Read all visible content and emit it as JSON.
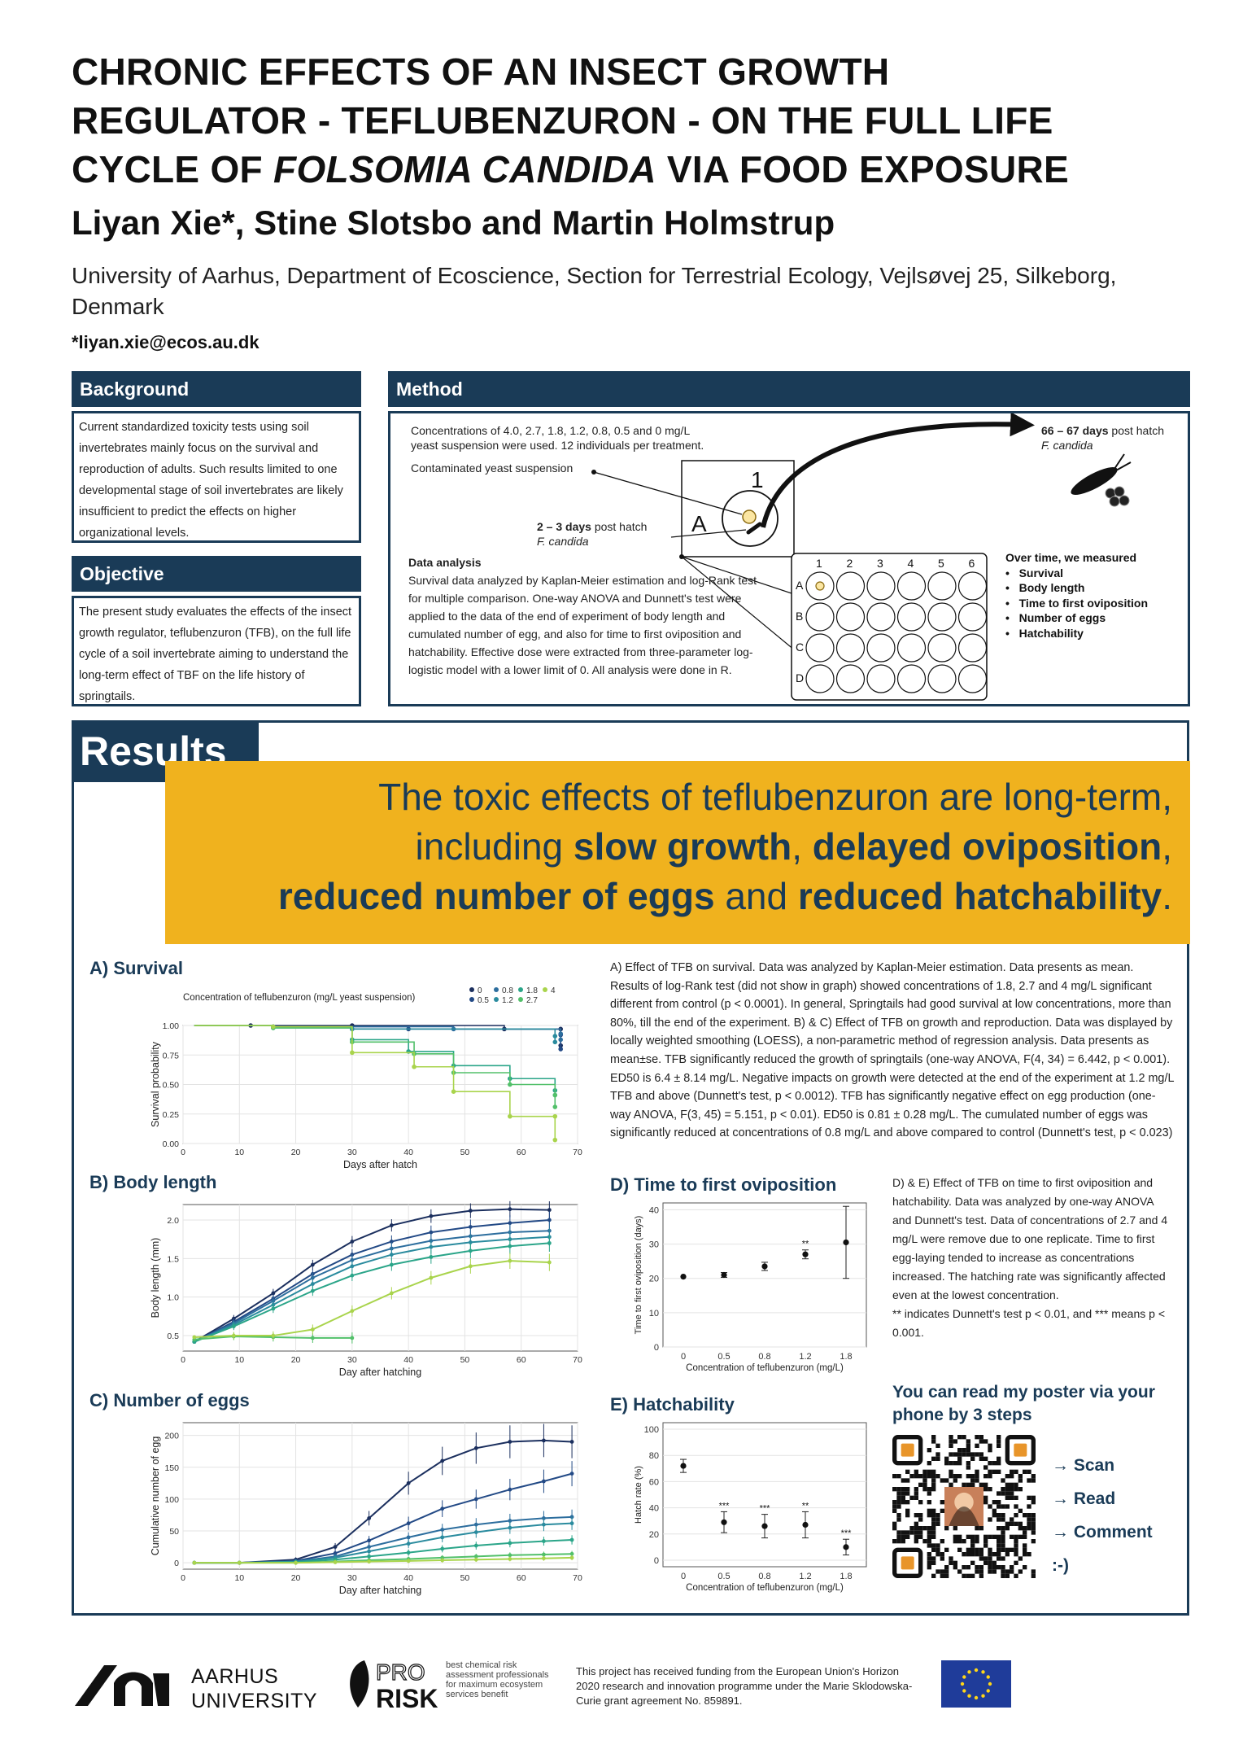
{
  "title": {
    "line1": "CHRONIC EFFECTS OF AN INSECT GROWTH",
    "line2": "REGULATOR - TEFLUBENZURON - ON THE FULL LIFE",
    "line3_pre": "CYCLE OF ",
    "line3_italic": "FOLSOMIA CANDIDA",
    "line3_post": " VIA FOOD EXPOSURE"
  },
  "authors": "Liyan Xie*, Stine Slotsbo and Martin Holmstrup",
  "affiliation": "University of Aarhus, Department of Ecoscience, Section for Terrestrial Ecology, Vejlsøvej 25, Silkeborg, Denmark",
  "email": "*liyan.xie@ecos.au.dk",
  "background": {
    "heading": "Background",
    "text": "Current standardized toxicity tests using soil invertebrates mainly focus on the survival and reproduction of adults. Such results limited to one developmental stage of soil invertebrates are likely insufficient to predict the effects on higher organizational levels."
  },
  "objective": {
    "heading": "Objective",
    "text": "The present study evaluates the effects of the insect growth regulator, teflubenzuron (TFB), on the full life cycle of a soil invertebrate aiming to understand the long-term effect of TBF on the life history of springtails."
  },
  "method": {
    "heading": "Method",
    "conc_text1": "Concentrations of 4.0, 2.7, 1.8, 1.2, 0.8, 0.5 and 0 mg/L",
    "conc_text2": "yeast suspension were used. 12 individuals per treatment.",
    "yeast": "Contaminated yeast suspension",
    "start_bold": "2 – 3 days",
    "start_rest": " post hatch",
    "species": "F. candida",
    "end_bold": "66 – 67 days",
    "end_rest": " post hatch",
    "well_label_1": "1",
    "well_label_a": "A",
    "plate_cols": [
      "1",
      "2",
      "3",
      "4",
      "5",
      "6"
    ],
    "plate_rows": [
      "A",
      "B",
      "C",
      "D"
    ],
    "da_heading": "Data analysis",
    "da_text": "Survival data analyzed by Kaplan-Meier estimation and log-Rank test for multiple comparison. One-way ANOVA and Dunnett's test were applied to the data of the end of experiment of body length and cumulated number of egg, and also for time to first oviposition and hatchability. Effective dose were extracted from three-parameter log-logistic model with a lower limit of 0. All analysis were done in R.",
    "measured_heading": "Over time, we measured",
    "measured": [
      "Survival",
      "Body length",
      "Time to first oviposition",
      "Number of eggs",
      "Hatchability"
    ]
  },
  "results": {
    "tag": "Results",
    "banner_1": "The toxic effects of teflubenzuron are long-term,",
    "banner_2a": "including ",
    "banner_2b": "slow growth",
    "banner_2c": ", ",
    "banner_2d": "delayed oviposition",
    "banner_2e": ",",
    "banner_3a": "reduced number of eggs",
    "banner_3b": " and ",
    "banner_3c": "reduced hatchability",
    "banner_3d": "."
  },
  "text_abc": "A) Effect of TFB on survival. Data was analyzed by Kaplan-Meier estimation. Data presents as mean. Results of log-Rank test (did not show in graph) showed concentrations of 1.8, 2.7 and 4 mg/L significant different from control (p < 0.0001). In general, Springtails had good survival at low concentrations, more than 80%, till the end of the experiment. B) & C) Effect of TFB on growth and reproduction. Data was displayed by locally weighted smoothing (LOESS), a non-parametric method of regression analysis. Data presents as mean±se. TFB significantly reduced the growth of springtails (one-way ANOVA, F(4, 34) = 6.442, p < 0.001). ED50 is 6.4 ± 8.14 mg/L. Negative impacts on growth were detected at the end of the experiment at 1.2 mg/L TFB and above (Dunnett's test, p < 0.0012). TFB has significantly negative effect on egg production (one-way ANOVA, F(3, 45) = 5.151, p < 0.01). ED50 is 0.81 ± 0.28 mg/L. The cumulated number of eggs was significantly reduced at concentrations of 0.8 mg/L and above compared to control (Dunnett's test, p < 0.023)",
  "text_de": "D) & E) Effect of TFB on time to first oviposition and hatchability. Data was analyzed by one-way ANOVA and Dunnett's test. Data of concentrations of 2.7 and 4 mg/L were remove due to one replicate. Time to first egg-laying tended to increase as concentrations increased. The hatching rate was significantly affected even at the lowest concentration.",
  "text_sig": "** indicates Dunnett's test p < 0.01, and *** means p < 0.001.",
  "qr": {
    "heading": "You can read my poster via your phone by 3 steps",
    "steps": [
      "→ Scan",
      "→ Read",
      "→ Comment",
      ":-)"
    ]
  },
  "footer": {
    "uni1": "AARHUS",
    "uni2": "UNIVERSITY",
    "prorisk_tag": "best chemical risk assessment professionals for maximum ecosystem services benefit",
    "funding": "This project has received funding from the European Union's Horizon 2020 research and innovation programme under the Marie Sklodowska-Curie grant agreement No. 859891."
  },
  "colors": {
    "c0": "#1b2f5e",
    "c05": "#234a86",
    "c08": "#2d6e9e",
    "c12": "#2a8b9e",
    "c18": "#2ba589",
    "c27": "#52c06a",
    "c4": "#a9d44c"
  },
  "chart_data": [
    {
      "id": "survival",
      "type": "line",
      "title": "A)  Survival",
      "legend_title": "Concentration of teflubenzuron (mg/L yeast suspension)",
      "xlabel": "Days after hatch",
      "ylabel": "Survival probability",
      "xlim": [
        0,
        70
      ],
      "ylim": [
        0,
        1
      ],
      "xticks": [
        0,
        10,
        20,
        30,
        40,
        50,
        60,
        70
      ],
      "yticks": [
        0.0,
        0.25,
        0.5,
        0.75,
        1.0
      ],
      "ytick_labels": [
        "0.00",
        "0.25",
        "0.50",
        "0.75",
        "1.00"
      ],
      "series": [
        {
          "name": "0",
          "color": "#1b2f5e",
          "x": [
            2,
            12,
            30,
            57,
            67,
            67
          ],
          "y": [
            1,
            1,
            1,
            0.97,
            0.97,
            0.83
          ]
        },
        {
          "name": "0.5",
          "color": "#234a86",
          "x": [
            2,
            16,
            40,
            67,
            67
          ],
          "y": [
            1,
            0.99,
            0.97,
            0.92,
            0.8
          ]
        },
        {
          "name": "0.8",
          "color": "#2d6e9e",
          "x": [
            2,
            16,
            48,
            67,
            67
          ],
          "y": [
            1,
            0.99,
            0.97,
            0.93,
            0.88
          ]
        },
        {
          "name": "1.2",
          "color": "#2a8b9e",
          "x": [
            2,
            16,
            30,
            66,
            66
          ],
          "y": [
            1,
            0.99,
            0.97,
            0.91,
            0.86
          ]
        },
        {
          "name": "1.8",
          "color": "#2ba589",
          "x": [
            2,
            16,
            30,
            40,
            48,
            58,
            66,
            66
          ],
          "y": [
            1,
            0.98,
            0.88,
            0.78,
            0.66,
            0.55,
            0.45,
            0.41
          ]
        },
        {
          "name": "2.7",
          "color": "#52c06a",
          "x": [
            2,
            16,
            30,
            41,
            48,
            58,
            66,
            66
          ],
          "y": [
            1,
            0.98,
            0.86,
            0.76,
            0.6,
            0.5,
            0.41,
            0.31
          ]
        },
        {
          "name": "4",
          "color": "#a9d44c",
          "x": [
            2,
            16,
            30,
            41,
            48,
            58,
            66,
            66
          ],
          "y": [
            1,
            0.99,
            0.77,
            0.65,
            0.44,
            0.23,
            0.23,
            0.03
          ]
        }
      ]
    },
    {
      "id": "body",
      "type": "line",
      "title": "B)  Body length",
      "xlabel": "Day after hatching",
      "ylabel": "Body length (mm)",
      "xlim": [
        0,
        70
      ],
      "ylim": [
        0.3,
        2.2
      ],
      "xticks": [
        0,
        10,
        20,
        30,
        40,
        50,
        60,
        70
      ],
      "yticks": [
        0.5,
        1.0,
        1.5,
        2.0
      ],
      "ytick_labels": [
        "0.5",
        "1.0",
        "1.5",
        "2.0"
      ],
      "series": [
        {
          "name": "0",
          "color": "#1b2f5e",
          "x": [
            2,
            9,
            16,
            23,
            30,
            37,
            44,
            51,
            58,
            65
          ],
          "y": [
            0.42,
            0.72,
            1.05,
            1.42,
            1.72,
            1.93,
            2.05,
            2.12,
            2.14,
            2.13
          ]
        },
        {
          "name": "0.5",
          "color": "#234a86",
          "x": [
            2,
            9,
            16,
            23,
            30,
            37,
            44,
            51,
            58,
            65
          ],
          "y": [
            0.42,
            0.68,
            0.98,
            1.3,
            1.55,
            1.72,
            1.84,
            1.91,
            1.96,
            2.0
          ]
        },
        {
          "name": "0.8",
          "color": "#2d6e9e",
          "x": [
            2,
            9,
            16,
            23,
            30,
            37,
            44,
            51,
            58,
            65
          ],
          "y": [
            0.42,
            0.66,
            0.95,
            1.25,
            1.48,
            1.63,
            1.73,
            1.79,
            1.84,
            1.86
          ]
        },
        {
          "name": "1.2",
          "color": "#2a8b9e",
          "x": [
            2,
            9,
            16,
            23,
            30,
            37,
            44,
            51,
            58,
            65
          ],
          "y": [
            0.42,
            0.64,
            0.9,
            1.17,
            1.4,
            1.55,
            1.65,
            1.71,
            1.75,
            1.78
          ]
        },
        {
          "name": "1.8",
          "color": "#2ba589",
          "x": [
            2,
            9,
            16,
            23,
            30,
            37,
            44,
            51,
            58,
            65
          ],
          "y": [
            0.42,
            0.62,
            0.85,
            1.08,
            1.28,
            1.42,
            1.52,
            1.6,
            1.66,
            1.7
          ]
        },
        {
          "name": "2.7",
          "color": "#52c06a",
          "x": [
            2,
            9,
            16,
            23,
            30
          ],
          "y": [
            0.45,
            0.49,
            0.48,
            0.47,
            0.47
          ]
        },
        {
          "name": "4",
          "color": "#a9d44c",
          "x": [
            2,
            9,
            16,
            23,
            30,
            37,
            44,
            51,
            58,
            65
          ],
          "y": [
            0.48,
            0.5,
            0.5,
            0.58,
            0.82,
            1.05,
            1.25,
            1.4,
            1.47,
            1.45
          ]
        }
      ]
    },
    {
      "id": "eggs",
      "type": "line",
      "title": "C)  Number of eggs",
      "xlabel": "Day after hatching",
      "ylabel": "Cumulative number of egg",
      "xlim": [
        0,
        70
      ],
      "ylim": [
        -10,
        220
      ],
      "xticks": [
        0,
        10,
        20,
        30,
        40,
        50,
        60,
        70
      ],
      "yticks": [
        0,
        50,
        100,
        150,
        200
      ],
      "ytick_labels": [
        "0",
        "50",
        "100",
        "150",
        "200"
      ],
      "series": [
        {
          "name": "0",
          "color": "#1b2f5e",
          "x": [
            2,
            10,
            20,
            27,
            33,
            40,
            46,
            52,
            58,
            64,
            69
          ],
          "y": [
            0,
            0,
            5,
            25,
            70,
            125,
            160,
            180,
            190,
            192,
            190
          ]
        },
        {
          "name": "0.5",
          "color": "#234a86",
          "x": [
            2,
            10,
            20,
            27,
            33,
            40,
            46,
            52,
            58,
            64,
            69
          ],
          "y": [
            0,
            0,
            3,
            15,
            35,
            62,
            85,
            100,
            115,
            128,
            140
          ]
        },
        {
          "name": "0.8",
          "color": "#2d6e9e",
          "x": [
            2,
            10,
            20,
            27,
            33,
            40,
            46,
            52,
            58,
            64,
            69
          ],
          "y": [
            0,
            0,
            2,
            10,
            25,
            40,
            52,
            60,
            66,
            70,
            72
          ]
        },
        {
          "name": "1.2",
          "color": "#2a8b9e",
          "x": [
            2,
            10,
            20,
            27,
            33,
            40,
            46,
            52,
            58,
            64,
            69
          ],
          "y": [
            0,
            0,
            2,
            8,
            18,
            30,
            40,
            48,
            55,
            60,
            62
          ]
        },
        {
          "name": "1.8",
          "color": "#2ba589",
          "x": [
            2,
            10,
            20,
            27,
            33,
            40,
            46,
            52,
            58,
            64,
            69
          ],
          "y": [
            0,
            0,
            1,
            5,
            10,
            16,
            22,
            27,
            31,
            34,
            36
          ]
        },
        {
          "name": "2.7",
          "color": "#52c06a",
          "x": [
            2,
            10,
            20,
            27,
            33,
            40,
            46,
            52,
            58,
            64,
            69
          ],
          "y": [
            0,
            0,
            0,
            2,
            4,
            6,
            8,
            10,
            12,
            13,
            14
          ]
        },
        {
          "name": "4",
          "color": "#a9d44c",
          "x": [
            2,
            10,
            20,
            27,
            33,
            40,
            46,
            52,
            58,
            64,
            69
          ],
          "y": [
            0,
            0,
            0,
            1,
            2,
            3,
            4,
            5,
            6,
            7,
            8
          ]
        }
      ]
    },
    {
      "id": "ovipos",
      "type": "scatter",
      "title": "D)  Time to first oviposition",
      "xlabel": "Concentration of teflubenzuron (mg/L)",
      "ylabel": "Time to first oviposition (days)",
      "categories": [
        "0",
        "0.5",
        "0.8",
        "1.2",
        "1.8"
      ],
      "values": [
        20.5,
        21,
        23.5,
        27,
        30.5
      ],
      "err": [
        0,
        0.7,
        1.2,
        1.3,
        10.5
      ],
      "annotations": [
        "",
        "",
        "",
        "**",
        ""
      ],
      "ylim": [
        0,
        42
      ],
      "yticks": [
        0,
        10,
        20,
        30,
        40
      ],
      "ytick_labels": [
        "0",
        "10",
        "20",
        "30",
        "40"
      ]
    },
    {
      "id": "hatch",
      "type": "scatter",
      "title": "E)  Hatchability",
      "xlabel": "Concentration of teflubenzuron (mg/L)",
      "ylabel": "Hatch rate (%)",
      "categories": [
        "0",
        "0.5",
        "0.8",
        "1.2",
        "1.8"
      ],
      "values": [
        72,
        29,
        26,
        27,
        10
      ],
      "err": [
        5,
        8,
        9,
        10,
        6
      ],
      "annotations": [
        "",
        "***",
        "***",
        "**",
        "***"
      ],
      "ylim": [
        -5,
        105
      ],
      "yticks": [
        0,
        20,
        40,
        60,
        80,
        100
      ],
      "ytick_labels": [
        "0",
        "20",
        "40",
        "60",
        "80",
        "100"
      ]
    }
  ]
}
